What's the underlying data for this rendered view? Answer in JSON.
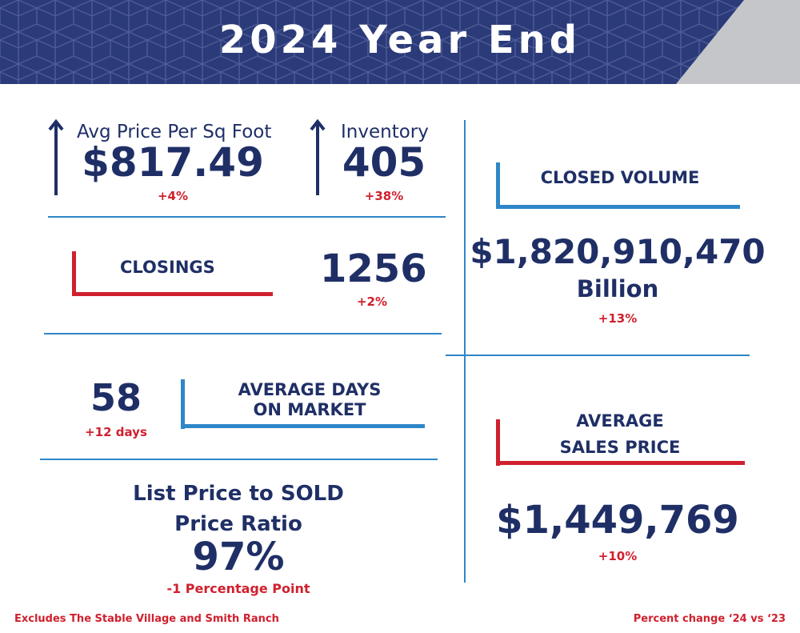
{
  "header": {
    "title": "2024 Year End"
  },
  "price_per_sqft": {
    "label": "Avg Price Per Sq Foot",
    "value": "$817.49",
    "change": "+4%"
  },
  "inventory": {
    "label": "Inventory",
    "value": "405",
    "change": "+38%"
  },
  "closings": {
    "label": "CLOSINGS",
    "value": "1256",
    "change": "+2%"
  },
  "days_on_market": {
    "value": "58",
    "change": "+12 days",
    "label_line1": "AVERAGE DAYS",
    "label_line2": "ON MARKET"
  },
  "price_ratio": {
    "label_line1": "List Price to SOLD",
    "label_line2": "Price Ratio",
    "value": "97%",
    "change": "-1 Percentage Point"
  },
  "closed_volume": {
    "label": "CLOSED VOLUME",
    "value": "$1,820,910,470",
    "unit": "Billion",
    "change": "+13%"
  },
  "avg_sales_price": {
    "label_line1": "AVERAGE",
    "label_line2": "SALES PRICE",
    "value": "$1,449,769",
    "change": "+10%"
  },
  "footer": {
    "left": "Excludes The Stable Village and Smith Ranch",
    "right": "Percent change ‘24 vs ‘23"
  },
  "colors": {
    "navy": "#1f2f66",
    "red": "#d0202e",
    "blue": "#2f86c8",
    "gray": "#c4c6ca"
  }
}
